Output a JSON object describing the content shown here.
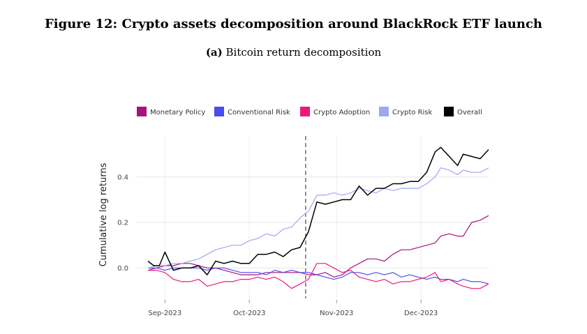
{
  "figure": {
    "title": "Figure 12:  Crypto assets decomposition around BlackRock ETF launch",
    "subtitle_label": "(a)",
    "subtitle": "Bitcoin return decomposition"
  },
  "chart_data": {
    "type": "line",
    "xlabel": "",
    "ylabel": "Cumulative log returns",
    "xlim": [
      "2023-08-27",
      "2023-12-30"
    ],
    "ylim": [
      -0.14,
      0.58
    ],
    "x_ticks": [
      {
        "date": "2023-09-06",
        "label": "Sep-2023"
      },
      {
        "date": "2023-10-06",
        "label": "Oct-2023"
      },
      {
        "date": "2023-11-06",
        "label": "Nov-2023"
      },
      {
        "date": "2023-12-06",
        "label": "Dec-2023"
      }
    ],
    "y_ticks": [
      0.0,
      0.2,
      0.4
    ],
    "y_tick_labels": [
      "0.0",
      "0.2",
      "0.4"
    ],
    "grid": true,
    "legend_position": "top",
    "event_line": {
      "date": "2023-10-26",
      "style": "dashed",
      "color": "#555555"
    },
    "series": [
      {
        "name": "Monetary Policy",
        "color": "#a8117e",
        "points": [
          [
            "2023-08-31",
            -0.01
          ],
          [
            "2023-09-03",
            0.0
          ],
          [
            "2023-09-06",
            0.01
          ],
          [
            "2023-09-09",
            0.01
          ],
          [
            "2023-09-12",
            0.02
          ],
          [
            "2023-09-15",
            0.02
          ],
          [
            "2023-09-18",
            0.01
          ],
          [
            "2023-09-21",
            0.0
          ],
          [
            "2023-09-24",
            0.0
          ],
          [
            "2023-09-27",
            -0.01
          ],
          [
            "2023-09-30",
            -0.02
          ],
          [
            "2023-10-03",
            -0.03
          ],
          [
            "2023-10-06",
            -0.03
          ],
          [
            "2023-10-09",
            -0.03
          ],
          [
            "2023-10-12",
            -0.02
          ],
          [
            "2023-10-15",
            -0.02
          ],
          [
            "2023-10-18",
            -0.02
          ],
          [
            "2023-10-21",
            -0.02
          ],
          [
            "2023-10-24",
            -0.02
          ],
          [
            "2023-10-27",
            -0.03
          ],
          [
            "2023-10-30",
            -0.03
          ],
          [
            "2023-11-02",
            -0.02
          ],
          [
            "2023-11-05",
            -0.04
          ],
          [
            "2023-11-08",
            -0.03
          ],
          [
            "2023-11-11",
            0.0
          ],
          [
            "2023-11-14",
            0.02
          ],
          [
            "2023-11-17",
            0.04
          ],
          [
            "2023-11-20",
            0.04
          ],
          [
            "2023-11-23",
            0.03
          ],
          [
            "2023-11-26",
            0.06
          ],
          [
            "2023-11-29",
            0.08
          ],
          [
            "2023-12-02",
            0.08
          ],
          [
            "2023-12-05",
            0.09
          ],
          [
            "2023-12-08",
            0.1
          ],
          [
            "2023-12-11",
            0.11
          ],
          [
            "2023-12-13",
            0.14
          ],
          [
            "2023-12-16",
            0.15
          ],
          [
            "2023-12-19",
            0.14
          ],
          [
            "2023-12-21",
            0.14
          ],
          [
            "2023-12-24",
            0.2
          ],
          [
            "2023-12-27",
            0.21
          ],
          [
            "2023-12-30",
            0.23
          ]
        ]
      },
      {
        "name": "Conventional Risk",
        "color": "#4b4bf5",
        "points": [
          [
            "2023-08-31",
            0.0
          ],
          [
            "2023-09-03",
            0.0
          ],
          [
            "2023-09-06",
            -0.01
          ],
          [
            "2023-09-09",
            0.0
          ],
          [
            "2023-09-12",
            0.0
          ],
          [
            "2023-09-15",
            0.0
          ],
          [
            "2023-09-18",
            0.0
          ],
          [
            "2023-09-21",
            -0.01
          ],
          [
            "2023-09-24",
            0.0
          ],
          [
            "2023-09-27",
            0.0
          ],
          [
            "2023-09-30",
            -0.01
          ],
          [
            "2023-10-03",
            -0.02
          ],
          [
            "2023-10-06",
            -0.02
          ],
          [
            "2023-10-09",
            -0.02
          ],
          [
            "2023-10-12",
            -0.03
          ],
          [
            "2023-10-15",
            -0.01
          ],
          [
            "2023-10-18",
            -0.02
          ],
          [
            "2023-10-21",
            -0.01
          ],
          [
            "2023-10-24",
            -0.02
          ],
          [
            "2023-10-27",
            -0.02
          ],
          [
            "2023-10-30",
            -0.03
          ],
          [
            "2023-11-02",
            -0.04
          ],
          [
            "2023-11-05",
            -0.05
          ],
          [
            "2023-11-08",
            -0.04
          ],
          [
            "2023-11-11",
            -0.02
          ],
          [
            "2023-11-14",
            -0.02
          ],
          [
            "2023-11-17",
            -0.03
          ],
          [
            "2023-11-20",
            -0.02
          ],
          [
            "2023-11-23",
            -0.03
          ],
          [
            "2023-11-26",
            -0.02
          ],
          [
            "2023-11-29",
            -0.04
          ],
          [
            "2023-12-02",
            -0.03
          ],
          [
            "2023-12-05",
            -0.04
          ],
          [
            "2023-12-08",
            -0.05
          ],
          [
            "2023-12-11",
            -0.04
          ],
          [
            "2023-12-13",
            -0.05
          ],
          [
            "2023-12-16",
            -0.05
          ],
          [
            "2023-12-19",
            -0.06
          ],
          [
            "2023-12-21",
            -0.05
          ],
          [
            "2023-12-24",
            -0.06
          ],
          [
            "2023-12-27",
            -0.06
          ],
          [
            "2023-12-30",
            -0.07
          ]
        ]
      },
      {
        "name": "Crypto Adoption",
        "color": "#f0177c",
        "points": [
          [
            "2023-08-31",
            -0.01
          ],
          [
            "2023-09-03",
            -0.01
          ],
          [
            "2023-09-06",
            -0.02
          ],
          [
            "2023-09-09",
            -0.05
          ],
          [
            "2023-09-12",
            -0.06
          ],
          [
            "2023-09-15",
            -0.06
          ],
          [
            "2023-09-18",
            -0.05
          ],
          [
            "2023-09-21",
            -0.08
          ],
          [
            "2023-09-24",
            -0.07
          ],
          [
            "2023-09-27",
            -0.06
          ],
          [
            "2023-09-30",
            -0.06
          ],
          [
            "2023-10-03",
            -0.05
          ],
          [
            "2023-10-06",
            -0.05
          ],
          [
            "2023-10-09",
            -0.04
          ],
          [
            "2023-10-12",
            -0.05
          ],
          [
            "2023-10-15",
            -0.04
          ],
          [
            "2023-10-18",
            -0.06
          ],
          [
            "2023-10-21",
            -0.09
          ],
          [
            "2023-10-24",
            -0.07
          ],
          [
            "2023-10-27",
            -0.05
          ],
          [
            "2023-10-30",
            0.02
          ],
          [
            "2023-11-02",
            0.02
          ],
          [
            "2023-11-05",
            0.0
          ],
          [
            "2023-11-08",
            -0.02
          ],
          [
            "2023-11-11",
            -0.01
          ],
          [
            "2023-11-14",
            -0.04
          ],
          [
            "2023-11-17",
            -0.05
          ],
          [
            "2023-11-20",
            -0.06
          ],
          [
            "2023-11-23",
            -0.05
          ],
          [
            "2023-11-26",
            -0.07
          ],
          [
            "2023-11-29",
            -0.06
          ],
          [
            "2023-12-02",
            -0.06
          ],
          [
            "2023-12-05",
            -0.05
          ],
          [
            "2023-12-08",
            -0.04
          ],
          [
            "2023-12-11",
            -0.02
          ],
          [
            "2023-12-13",
            -0.06
          ],
          [
            "2023-12-16",
            -0.05
          ],
          [
            "2023-12-19",
            -0.07
          ],
          [
            "2023-12-21",
            -0.08
          ],
          [
            "2023-12-24",
            -0.09
          ],
          [
            "2023-12-27",
            -0.09
          ],
          [
            "2023-12-30",
            -0.07
          ]
        ]
      },
      {
        "name": "Crypto Risk",
        "color": "#9ea6f6",
        "points": [
          [
            "2023-08-31",
            0.0
          ],
          [
            "2023-09-03",
            0.01
          ],
          [
            "2023-09-06",
            0.01
          ],
          [
            "2023-09-09",
            0.02
          ],
          [
            "2023-09-12",
            0.02
          ],
          [
            "2023-09-15",
            0.03
          ],
          [
            "2023-09-18",
            0.04
          ],
          [
            "2023-09-21",
            0.06
          ],
          [
            "2023-09-24",
            0.08
          ],
          [
            "2023-09-27",
            0.09
          ],
          [
            "2023-09-30",
            0.1
          ],
          [
            "2023-10-03",
            0.1
          ],
          [
            "2023-10-06",
            0.12
          ],
          [
            "2023-10-09",
            0.13
          ],
          [
            "2023-10-12",
            0.15
          ],
          [
            "2023-10-15",
            0.14
          ],
          [
            "2023-10-18",
            0.17
          ],
          [
            "2023-10-21",
            0.18
          ],
          [
            "2023-10-24",
            0.22
          ],
          [
            "2023-10-27",
            0.25
          ],
          [
            "2023-10-30",
            0.32
          ],
          [
            "2023-11-02",
            0.32
          ],
          [
            "2023-11-05",
            0.33
          ],
          [
            "2023-11-08",
            0.32
          ],
          [
            "2023-11-11",
            0.33
          ],
          [
            "2023-11-14",
            0.35
          ],
          [
            "2023-11-17",
            0.34
          ],
          [
            "2023-11-20",
            0.33
          ],
          [
            "2023-11-23",
            0.35
          ],
          [
            "2023-11-26",
            0.34
          ],
          [
            "2023-11-29",
            0.35
          ],
          [
            "2023-12-02",
            0.35
          ],
          [
            "2023-12-05",
            0.35
          ],
          [
            "2023-12-08",
            0.37
          ],
          [
            "2023-12-11",
            0.4
          ],
          [
            "2023-12-13",
            0.44
          ],
          [
            "2023-12-16",
            0.43
          ],
          [
            "2023-12-19",
            0.41
          ],
          [
            "2023-12-21",
            0.43
          ],
          [
            "2023-12-24",
            0.42
          ],
          [
            "2023-12-27",
            0.42
          ],
          [
            "2023-12-30",
            0.44
          ]
        ]
      },
      {
        "name": "Overall",
        "color": "#000000",
        "points": [
          [
            "2023-08-31",
            0.03
          ],
          [
            "2023-09-02",
            0.01
          ],
          [
            "2023-09-04",
            0.01
          ],
          [
            "2023-09-06",
            0.07
          ],
          [
            "2023-09-09",
            -0.01
          ],
          [
            "2023-09-12",
            0.0
          ],
          [
            "2023-09-15",
            0.0
          ],
          [
            "2023-09-18",
            0.01
          ],
          [
            "2023-09-21",
            -0.03
          ],
          [
            "2023-09-24",
            0.03
          ],
          [
            "2023-09-27",
            0.02
          ],
          [
            "2023-09-30",
            0.03
          ],
          [
            "2023-10-03",
            0.02
          ],
          [
            "2023-10-06",
            0.02
          ],
          [
            "2023-10-09",
            0.06
          ],
          [
            "2023-10-12",
            0.06
          ],
          [
            "2023-10-15",
            0.07
          ],
          [
            "2023-10-18",
            0.05
          ],
          [
            "2023-10-21",
            0.08
          ],
          [
            "2023-10-24",
            0.09
          ],
          [
            "2023-10-27",
            0.16
          ],
          [
            "2023-10-30",
            0.29
          ],
          [
            "2023-11-02",
            0.28
          ],
          [
            "2023-11-05",
            0.29
          ],
          [
            "2023-11-08",
            0.3
          ],
          [
            "2023-11-11",
            0.3
          ],
          [
            "2023-11-14",
            0.36
          ],
          [
            "2023-11-17",
            0.32
          ],
          [
            "2023-11-20",
            0.35
          ],
          [
            "2023-11-23",
            0.35
          ],
          [
            "2023-11-26",
            0.37
          ],
          [
            "2023-11-29",
            0.37
          ],
          [
            "2023-12-02",
            0.38
          ],
          [
            "2023-12-05",
            0.38
          ],
          [
            "2023-12-08",
            0.42
          ],
          [
            "2023-12-11",
            0.51
          ],
          [
            "2023-12-13",
            0.53
          ],
          [
            "2023-12-16",
            0.49
          ],
          [
            "2023-12-19",
            0.45
          ],
          [
            "2023-12-21",
            0.5
          ],
          [
            "2023-12-24",
            0.49
          ],
          [
            "2023-12-27",
            0.48
          ],
          [
            "2023-12-30",
            0.52
          ]
        ]
      }
    ]
  }
}
